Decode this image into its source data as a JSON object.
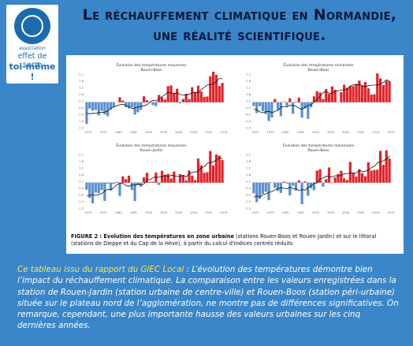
{
  "logo": {
    "assoc": "association",
    "line1": "effet de serre",
    "line2": "toi-même !"
  },
  "title": "Le réchauffement climatique en Normandie, une réalité scientifique.",
  "figure": {
    "charts": [
      {
        "title": "Évolution des températures moyennes",
        "station": "Rouen-Boos",
        "seed": 1
      },
      {
        "title": "Évolution des températures minimales",
        "station": "Rouen-Boos",
        "seed": 2
      },
      {
        "title": "Évolution des températures moyennes",
        "station": "Rouen-Jardin",
        "seed": 3
      },
      {
        "title": "Évolution des températures maximales",
        "station": "Rouen-Boos",
        "seed": 4
      }
    ],
    "years": [
      "1970",
      "1975",
      "1980",
      "1985",
      "1990",
      "1995",
      "2000",
      "2005",
      "2010",
      "2015"
    ],
    "yticks": [
      "2.1",
      "1.6",
      "1.1",
      "0.6",
      "0.1",
      "-0.4",
      "-0.9",
      "-1.4",
      "-1.9"
    ],
    "caption_bold": "FIGURE 2 : Évolution des températures en zone urbaine",
    "caption_rest": " (stations Rouen-Boos et Rouen-Jardin) et sur le littoral (stations de Dieppe et du Cap de la Hève), à partir du calcul d'indices centrés réduits"
  },
  "description": {
    "highlight": "Ce tableau issu du rapport du GIEC Local",
    "body": " : L’évolution des températures démontre bien l’impact du réchauffement climatique. La comparaison entre les valeurs enregistrées dans la station de Rouen-Jardin (station urbaine de centre-ville) et Rouen-Boos (station péri-urbaine) située sur le plateau nord de l’agglomération, ne montre pas de différences significatives. On remarque, cependant, une plus importante hausse des valeurs urbaines sur les cinq dernières années."
  },
  "colors": {
    "positive": "#e0232a",
    "negative": "#5b8fd0",
    "background": "#3a86c8",
    "title": "#0c1636"
  }
}
